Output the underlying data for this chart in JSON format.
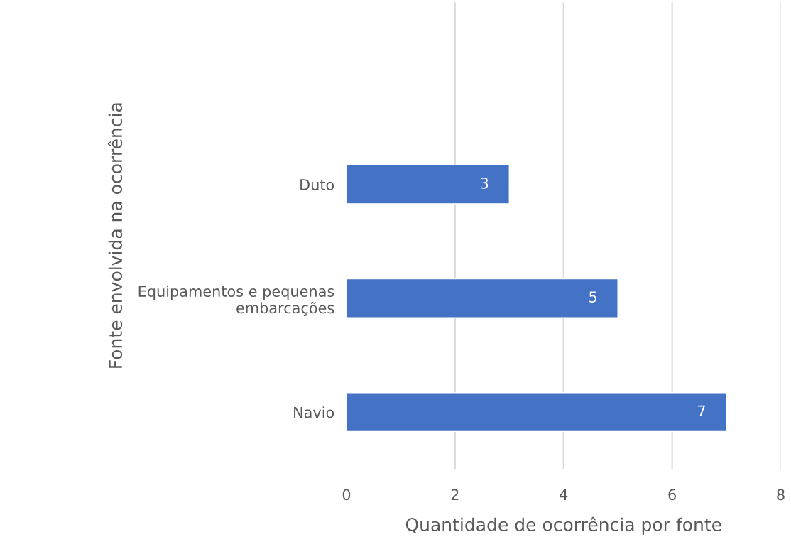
{
  "chart_data": {
    "type": "bar",
    "orientation": "horizontal",
    "categories": [
      "Duto",
      "Equipamentos e pequenas\nembarcações",
      "Navio"
    ],
    "values": [
      3,
      5,
      7
    ],
    "color": "#4472c4",
    "xlabel": "Quantidade de ocorrência por fonte",
    "ylabel": "Fonte envolvida na ocorrência",
    "xlim": [
      0,
      8
    ],
    "xticks": [
      0,
      2,
      4,
      6,
      8
    ],
    "grid": "x",
    "data_labels": true
  }
}
